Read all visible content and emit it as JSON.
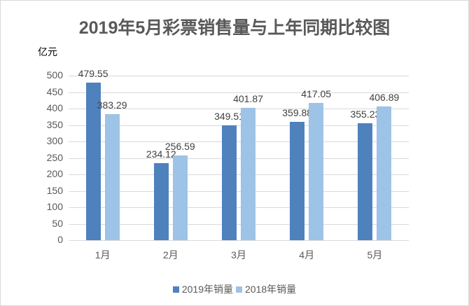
{
  "chart_data": {
    "type": "bar",
    "title": "2019年5月彩票销售量与上年同期比较图",
    "ylabel": "亿元",
    "xlabel": "",
    "categories": [
      "1月",
      "2月",
      "3月",
      "4月",
      "5月"
    ],
    "series": [
      {
        "name": "2019年销量",
        "color": "#4f81bd",
        "values": [
          479.55,
          234.12,
          349.51,
          359.88,
          355.23
        ],
        "labels": [
          "479.55",
          "234.12",
          "349.51",
          "359.88",
          "355.23"
        ]
      },
      {
        "name": "2018年销量",
        "color": "#9dc3e6",
        "values": [
          383.29,
          256.59,
          401.87,
          417.05,
          406.89
        ],
        "labels": [
          "383.29",
          "256.59",
          "401.87",
          "417.05",
          "406.89"
        ]
      }
    ],
    "ylim": [
      0,
      500
    ],
    "yticks": [
      "0",
      "50",
      "100",
      "150",
      "200",
      "250",
      "300",
      "350",
      "400",
      "450",
      "500"
    ],
    "grid": true,
    "legend_position": "bottom"
  }
}
